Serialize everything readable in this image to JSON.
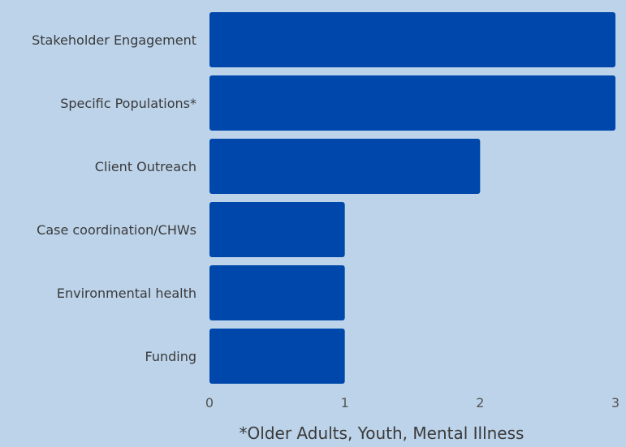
{
  "chart_data": {
    "type": "bar",
    "orientation": "horizontal",
    "categories": [
      "Stakeholder Engagement",
      "Specific Populations*",
      "Client Outreach",
      "Case coordination/CHWs",
      "Environmental health",
      "Funding"
    ],
    "values": [
      3,
      3,
      2,
      1,
      1,
      1
    ],
    "xlim": [
      0,
      3
    ],
    "xticks": [
      "0",
      "1",
      "2",
      "3"
    ],
    "grid": false,
    "bar_color": "#0047ab",
    "footnote": "*Older Adults, Youth, Mental Illness"
  }
}
